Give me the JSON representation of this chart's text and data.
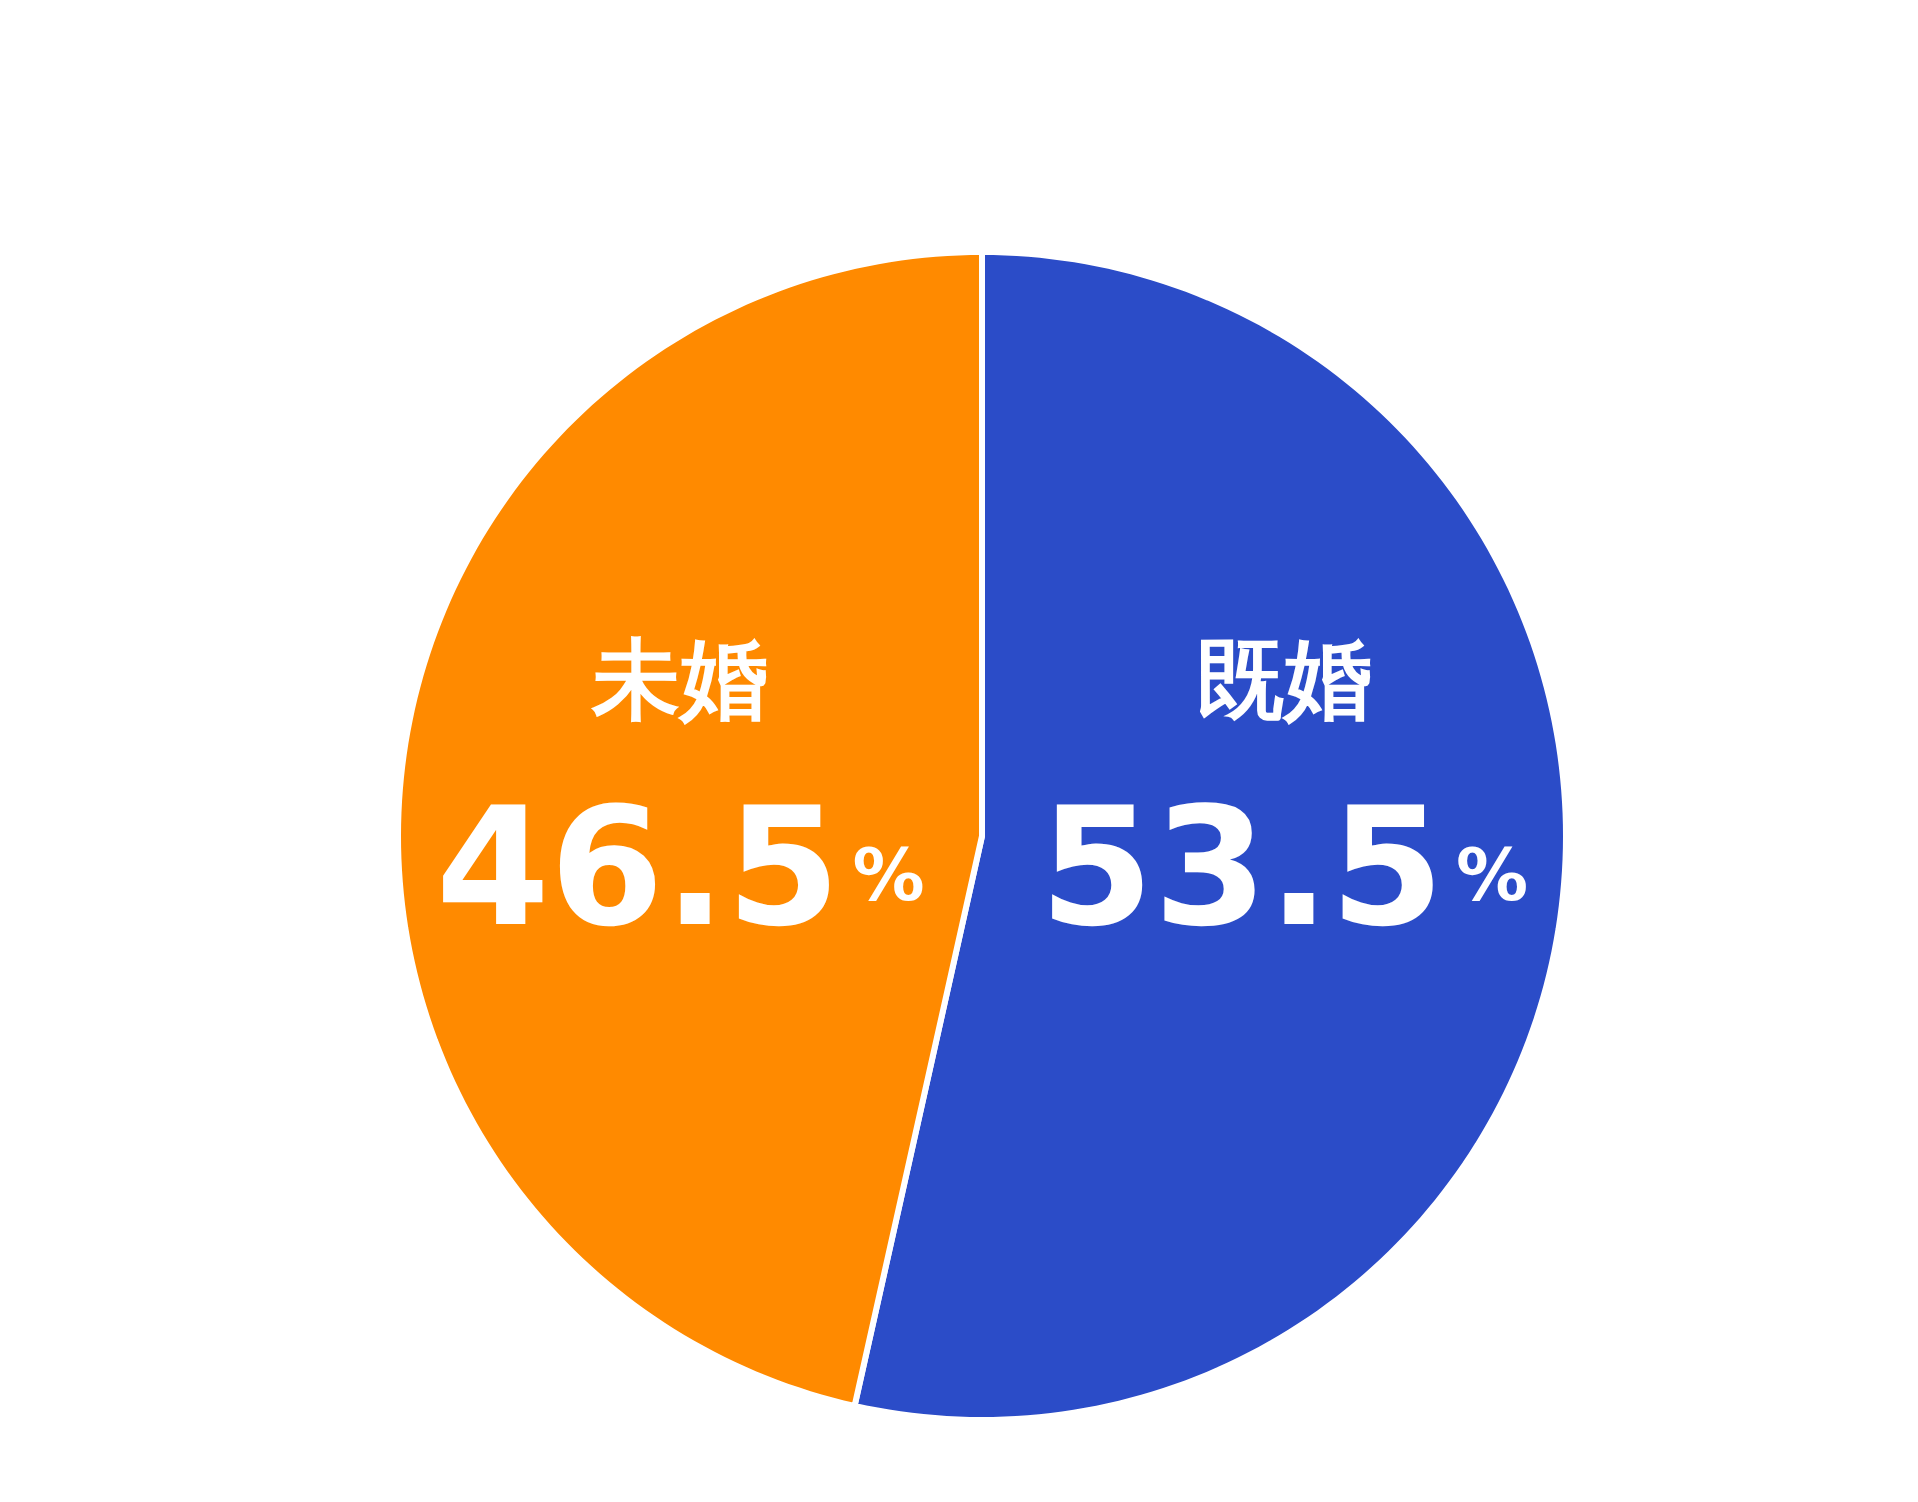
{
  "chart_data": {
    "type": "pie",
    "categories": [
      "既婚",
      "未婚"
    ],
    "values": [
      53.5,
      46.5
    ],
    "colors": [
      "#2b4cc8",
      "#ff8a00"
    ],
    "value_labels": [
      "53.5%",
      "46.5%"
    ]
  }
}
